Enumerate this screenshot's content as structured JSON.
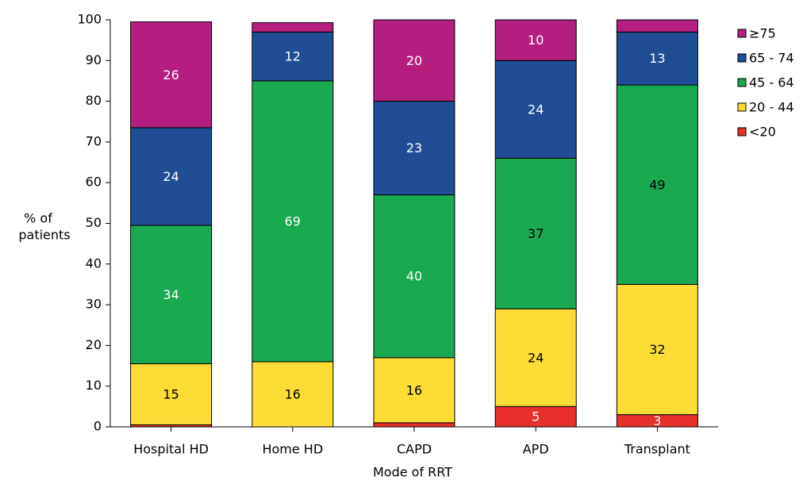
{
  "chart_data": {
    "type": "stacked_bar",
    "x_label": "Mode of RRT",
    "y_label": [
      "% of",
      "patients"
    ],
    "categories": [
      "Hospital HD",
      "Home HD",
      "CAPD",
      "APD",
      "Transplant"
    ],
    "series": [
      {
        "name": "<20",
        "color": "#e8302a",
        "values": [
          0.5,
          0,
          1,
          5,
          3
        ],
        "value_labels": [
          null,
          null,
          null,
          "5",
          "3"
        ],
        "label_colors": [
          "#ffffff",
          "#ffffff",
          "#ffffff",
          "#ffffff",
          "#ffffff"
        ]
      },
      {
        "name": "20 - 44",
        "color": "#fddd35",
        "values": [
          15,
          16,
          16,
          24,
          32
        ],
        "value_labels": [
          "15",
          "16",
          "16",
          "24",
          "32"
        ],
        "label_colors": [
          "#000000",
          "#000000",
          "#000000",
          "#000000",
          "#000000"
        ]
      },
      {
        "name": "45 - 64",
        "color": "#1aa850",
        "values": [
          34,
          69,
          40,
          37,
          49
        ],
        "value_labels": [
          "34",
          "69",
          "40",
          "37",
          "49"
        ],
        "label_colors": [
          "#ffffff",
          "#ffffff",
          "#ffffff",
          "#000000",
          "#000000"
        ]
      },
      {
        "name": "65 - 74",
        "color": "#1f4e95",
        "values": [
          24,
          12,
          23,
          24,
          13
        ],
        "value_labels": [
          "24",
          "12",
          "23",
          "24",
          "13"
        ],
        "label_colors": [
          "#ffffff",
          "#ffffff",
          "#ffffff",
          "#ffffff",
          "#ffffff"
        ]
      },
      {
        "name": "≥75",
        "color": "#b41f7f",
        "values": [
          26,
          2.3,
          20,
          10,
          3
        ],
        "value_labels": [
          "26",
          null,
          "20",
          "10",
          null
        ],
        "label_colors": [
          "#ffffff",
          "#ffffff",
          "#ffffff",
          "#ffffff",
          "#ffffff"
        ]
      }
    ],
    "ylim": [
      0,
      100
    ],
    "yticks": [
      0,
      10,
      20,
      30,
      40,
      50,
      60,
      70,
      80,
      90,
      100
    ],
    "legend": "right"
  }
}
